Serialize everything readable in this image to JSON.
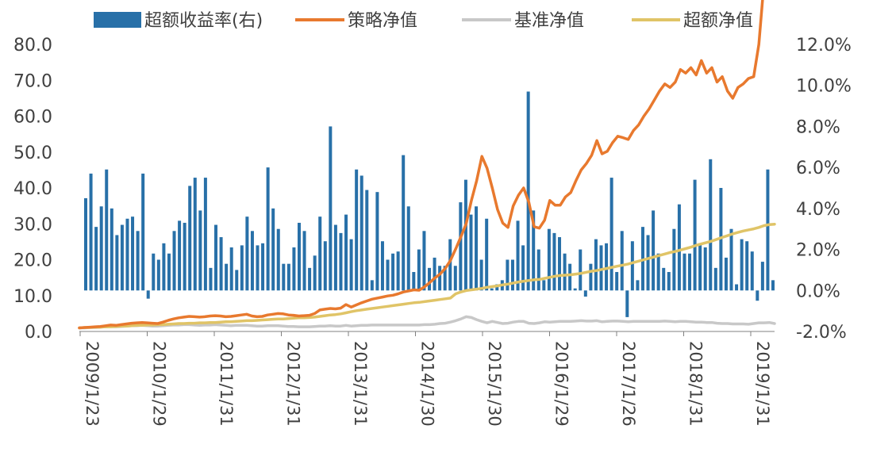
{
  "chart_data": {
    "type": "bar+line",
    "legend": {
      "placement": "top",
      "entries": [
        {
          "name": "超额收益率(右)",
          "kind": "bar",
          "color": "#2870A8"
        },
        {
          "name": "策略净值",
          "kind": "line",
          "color": "#E8792E"
        },
        {
          "name": "基准净值",
          "kind": "line",
          "color": "#C8C8C8"
        },
        {
          "name": "超额净值",
          "kind": "line",
          "color": "#E0C467"
        }
      ]
    },
    "y_left": {
      "min": 0,
      "max": 80,
      "ticks": [
        "80.0",
        "70.0",
        "60.0",
        "50.0",
        "40.0",
        "30.0",
        "20.0",
        "10.0",
        "0.0"
      ]
    },
    "y_right": {
      "min": -2,
      "max": 12,
      "ticks": [
        "12.0%",
        "10.0%",
        "8.0%",
        "6.0%",
        "4.0%",
        "2.0%",
        "0.0%",
        "-2.0%"
      ]
    },
    "x_tick_labels": [
      "2009/1/23",
      "2010/1/29",
      "2011/1/31",
      "2012/1/31",
      "2013/1/31",
      "2014/1/30",
      "2015/1/30",
      "2016/1/29",
      "2017/1/26",
      "2018/1/31",
      "2019/1/31"
    ],
    "excess_return_pct": [
      4.5,
      5.7,
      3.1,
      4.1,
      5.9,
      4.0,
      2.7,
      3.2,
      3.5,
      3.6,
      2.9,
      5.7,
      -0.4,
      1.8,
      1.5,
      2.3,
      1.8,
      2.9,
      3.4,
      3.3,
      5.1,
      5.5,
      3.9,
      5.5,
      1.1,
      3.2,
      2.6,
      1.3,
      2.1,
      1.0,
      2.2,
      3.6,
      2.9,
      2.2,
      2.3,
      6.0,
      4.0,
      3.0,
      1.3,
      1.3,
      2.1,
      3.3,
      2.9,
      1.1,
      1.7,
      3.6,
      2.4,
      8.0,
      3.2,
      2.8,
      3.7,
      2.5,
      5.9,
      5.6,
      4.9,
      0.5,
      4.8,
      2.4,
      1.5,
      1.8,
      1.9,
      6.6,
      4.1,
      0.9,
      2.0,
      2.9,
      1.1,
      1.6,
      1.2,
      1.2,
      2.5,
      1.2,
      4.3,
      5.4,
      3.7,
      4.1,
      1.5,
      3.5,
      0.1,
      0.3,
      0.5,
      1.5,
      1.5,
      3.4,
      2.2,
      9.7,
      3.9,
      2.0,
      0.5,
      3.0,
      2.8,
      2.6,
      1.8,
      1.3,
      0.1,
      2.0,
      -0.3,
      1.3,
      2.5,
      2.2,
      2.3,
      5.5,
      0.9,
      2.9,
      -1.3,
      2.4,
      0.5,
      3.1,
      2.7,
      3.9,
      1.8,
      1.1,
      0.9,
      3.0,
      4.2,
      1.8,
      1.8,
      5.4,
      2.3,
      2.1,
      6.4,
      1.1,
      5.0,
      1.6,
      3.0,
      0.3,
      2.5,
      2.4,
      1.9,
      -0.5,
      1.4,
      5.9,
      0.5
    ],
    "strategy_nav": [
      1.0,
      1.1,
      1.2,
      1.3,
      1.4,
      1.6,
      1.8,
      1.7,
      1.9,
      2.1,
      2.3,
      2.4,
      2.5,
      2.4,
      2.3,
      2.2,
      2.6,
      3.1,
      3.5,
      3.8,
      4.0,
      4.2,
      4.1,
      4.0,
      4.1,
      4.3,
      4.4,
      4.3,
      4.1,
      4.2,
      4.4,
      4.6,
      4.8,
      4.3,
      4.1,
      4.2,
      4.6,
      4.8,
      5.0,
      4.9,
      4.6,
      4.5,
      4.3,
      4.4,
      4.5,
      5.0,
      6.0,
      6.2,
      6.4,
      6.3,
      6.5,
      7.5,
      6.8,
      7.4,
      8.0,
      8.5,
      9.0,
      9.3,
      9.6,
      9.9,
      10.1,
      10.5,
      11.0,
      11.3,
      11.6,
      11.5,
      12.4,
      13.6,
      14.9,
      16.0,
      17.6,
      19.8,
      23.0,
      26.4,
      30.0,
      36.5,
      42.0,
      48.8,
      45.5,
      40.0,
      34.0,
      30.2,
      29.0,
      35.0,
      38.0,
      40.0,
      36.0,
      29.2,
      28.8,
      31.0,
      36.5,
      35.2,
      35.2,
      37.5,
      38.7,
      42.0,
      45.0,
      46.8,
      49.1,
      53.2,
      49.5,
      50.2,
      52.6,
      54.4,
      54.0,
      53.5,
      56.0,
      57.6,
      60.0,
      62.0,
      64.5,
      67.0,
      69.0,
      68.0,
      69.5,
      73.0,
      72.0,
      73.5,
      71.5,
      75.5,
      72.0,
      73.5,
      69.5,
      71.0,
      67.0,
      65.0,
      68.0,
      69.0,
      70.5,
      71.0,
      80.0,
      97.5,
      100.0,
      95.0
    ],
    "benchmark_nav": [
      1.0,
      1.0,
      1.1,
      1.1,
      1.2,
      1.3,
      1.4,
      1.3,
      1.4,
      1.5,
      1.6,
      1.6,
      1.7,
      1.6,
      1.5,
      1.5,
      1.6,
      1.7,
      1.8,
      1.8,
      1.9,
      1.9,
      1.8,
      1.7,
      1.8,
      1.8,
      1.9,
      1.8,
      1.7,
      1.6,
      1.7,
      1.7,
      1.7,
      1.6,
      1.5,
      1.5,
      1.6,
      1.6,
      1.6,
      1.5,
      1.4,
      1.4,
      1.3,
      1.3,
      1.3,
      1.4,
      1.5,
      1.5,
      1.6,
      1.5,
      1.5,
      1.7,
      1.5,
      1.6,
      1.7,
      1.7,
      1.8,
      1.8,
      1.8,
      1.8,
      1.8,
      1.8,
      1.8,
      1.8,
      1.8,
      1.8,
      1.9,
      1.9,
      2.0,
      2.2,
      2.3,
      2.6,
      3.0,
      3.5,
      4.1,
      3.9,
      3.3,
      2.8,
      2.4,
      2.8,
      2.5,
      2.2,
      2.3,
      2.6,
      2.8,
      2.8,
      2.3,
      2.2,
      2.4,
      2.7,
      2.6,
      2.7,
      2.8,
      2.8,
      2.8,
      2.9,
      3.0,
      2.9,
      2.9,
      3.0,
      2.7,
      2.8,
      2.9,
      2.9,
      2.8,
      2.7,
      2.8,
      2.8,
      2.8,
      2.8,
      2.8,
      2.8,
      2.9,
      2.8,
      2.7,
      2.8,
      2.8,
      2.7,
      2.6,
      2.6,
      2.5,
      2.5,
      2.3,
      2.2,
      2.2,
      2.1,
      2.1,
      2.1,
      2.0,
      2.2,
      2.4,
      2.4,
      2.5,
      2.2
    ],
    "excess_nav": [
      1.0,
      1.1,
      1.1,
      1.2,
      1.2,
      1.3,
      1.3,
      1.4,
      1.5,
      1.5,
      1.6,
      1.7,
      1.7,
      1.8,
      1.8,
      1.9,
      1.9,
      2.0,
      2.1,
      2.2,
      2.2,
      2.3,
      2.3,
      2.4,
      2.4,
      2.5,
      2.5,
      2.6,
      2.7,
      2.7,
      2.8,
      2.9,
      3.0,
      3.0,
      3.1,
      3.2,
      3.3,
      3.4,
      3.5,
      3.5,
      3.6,
      3.7,
      3.8,
      3.8,
      3.9,
      4.0,
      4.2,
      4.4,
      4.6,
      4.7,
      4.9,
      5.2,
      5.5,
      5.8,
      6.0,
      6.2,
      6.4,
      6.6,
      6.8,
      7.0,
      7.2,
      7.4,
      7.6,
      7.8,
      8.0,
      8.1,
      8.3,
      8.5,
      8.7,
      8.9,
      9.1,
      9.3,
      10.5,
      11.0,
      11.4,
      11.6,
      11.8,
      12.0,
      12.3,
      12.5,
      12.7,
      13.0,
      13.2,
      13.5,
      13.8,
      14.0,
      14.2,
      14.4,
      14.5,
      14.8,
      15.1,
      15.4,
      15.6,
      15.7,
      15.8,
      16.0,
      16.2,
      16.5,
      16.8,
      17.0,
      17.3,
      17.6,
      17.9,
      18.2,
      18.5,
      18.8,
      19.2,
      19.6,
      20.0,
      20.4,
      20.8,
      21.2,
      21.6,
      22.0,
      22.3,
      22.7,
      23.1,
      23.5,
      24.0,
      24.4,
      24.8,
      25.2,
      25.7,
      26.2,
      26.7,
      27.2,
      27.6,
      28.0,
      28.3,
      28.6,
      29.0,
      29.5,
      29.8,
      29.9
    ]
  }
}
